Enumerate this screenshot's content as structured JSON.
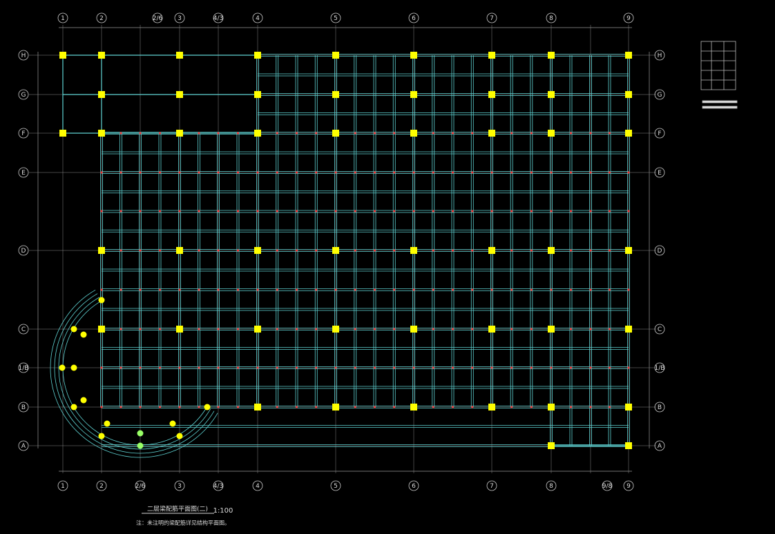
{
  "grid_columns_top": [
    "1",
    "2",
    "2/6",
    "3",
    "4/3",
    "4",
    "5",
    "6",
    "7",
    "8",
    "9"
  ],
  "grid_columns_bottom": [
    "1",
    "2",
    "2/6",
    "3",
    "4/3",
    "4",
    "5",
    "6",
    "7",
    "8",
    "9/8",
    "9"
  ],
  "grid_rows": [
    "H",
    "G",
    "F",
    "E",
    "D",
    "C",
    "1/B",
    "B",
    "A"
  ],
  "footer": {
    "title": "二层梁配筋平面图(二)",
    "scale": "1:100",
    "note": "注：未注明的梁配筋详见结构平面图。"
  }
}
